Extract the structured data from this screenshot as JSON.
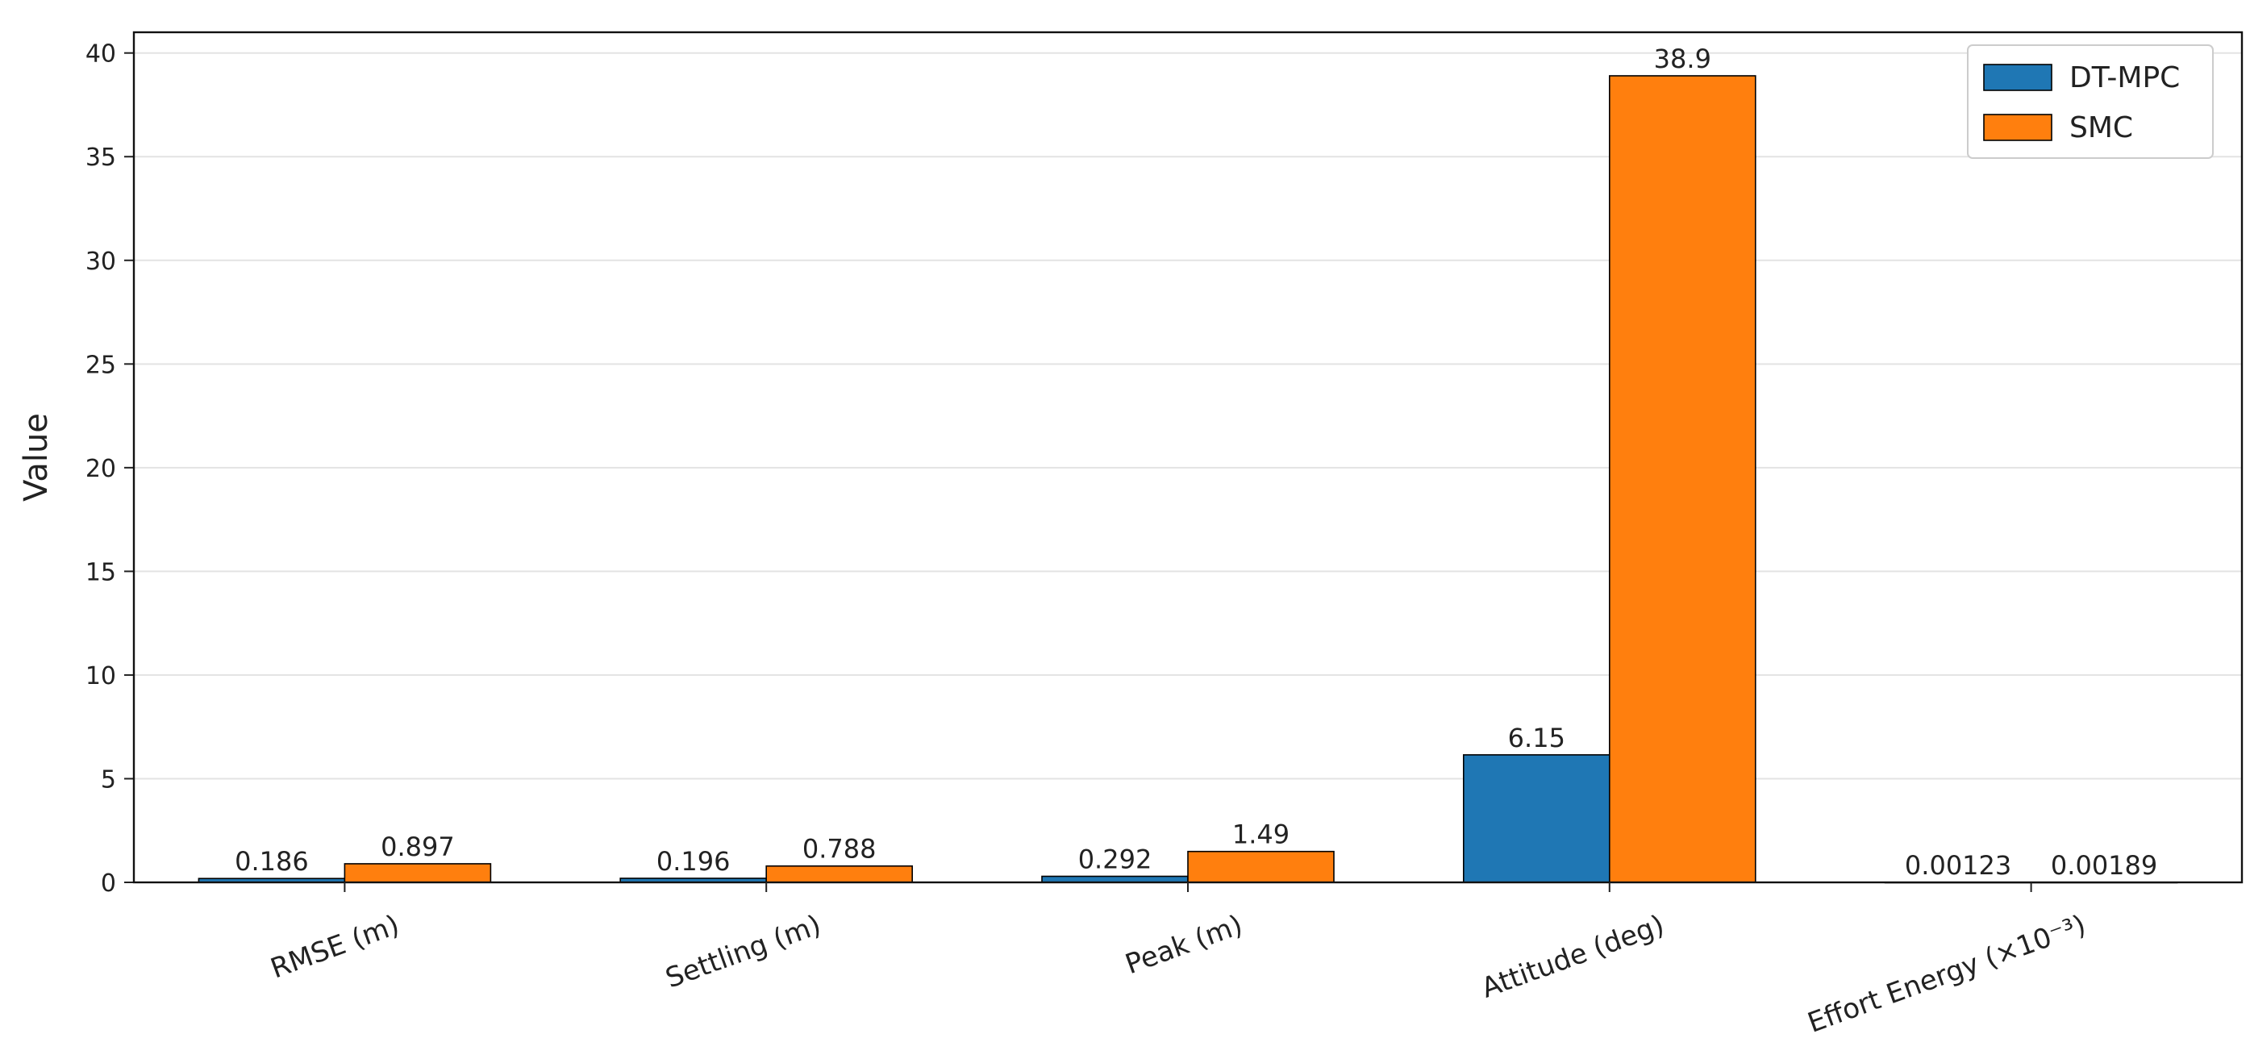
{
  "chart_data": {
    "type": "bar",
    "title": "",
    "xlabel": "",
    "ylabel": "Value",
    "ylim": [
      0,
      41
    ],
    "yticks": [
      0,
      5,
      10,
      15,
      20,
      25,
      30,
      35,
      40
    ],
    "grid": "horizontal",
    "legend_position": "top-right",
    "categories": [
      "RMSE (m)",
      "Settling (m)",
      "Peak (m)",
      "Attitude (deg)",
      "Effort Energy (×10⁻³)"
    ],
    "series": [
      {
        "name": "DT-MPC",
        "color": "#1f77b4",
        "values": [
          0.186,
          0.196,
          0.292,
          6.15,
          0.00123
        ],
        "labels": [
          "0.186",
          "0.196",
          "0.292",
          "6.15",
          "0.00123"
        ]
      },
      {
        "name": "SMC",
        "color": "#ff7f0e",
        "values": [
          0.897,
          0.788,
          1.49,
          38.9,
          0.00189
        ],
        "labels": [
          "0.897",
          "0.788",
          "1.49",
          "38.9",
          "0.00189"
        ]
      }
    ]
  }
}
